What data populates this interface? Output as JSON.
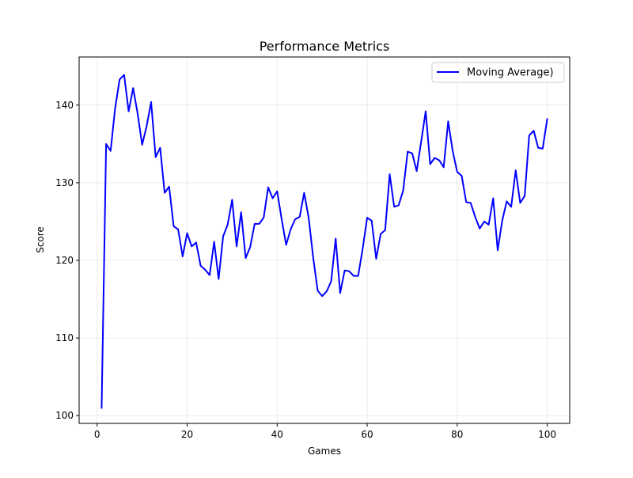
{
  "chart_data": {
    "type": "line",
    "title": "Performance Metrics",
    "xlabel": "Games",
    "ylabel": "Score",
    "xlim": [
      -4,
      105
    ],
    "ylim": [
      99.0,
      146.2
    ],
    "x_ticks": [
      0,
      20,
      40,
      60,
      80,
      100
    ],
    "y_ticks": [
      100,
      110,
      120,
      130,
      140
    ],
    "x_tick_labels": [
      "0",
      "20",
      "40",
      "60",
      "80",
      "100"
    ],
    "y_tick_labels": [
      "100",
      "110",
      "120",
      "130",
      "140"
    ],
    "grid": true,
    "legend_position": "top-right",
    "series": [
      {
        "name": "Moving Average)",
        "color": "#0000ff",
        "x": [
          1,
          2,
          3,
          4,
          5,
          6,
          7,
          8,
          9,
          10,
          11,
          12,
          13,
          14,
          15,
          16,
          17,
          18,
          19,
          20,
          21,
          22,
          23,
          24,
          25,
          26,
          27,
          28,
          29,
          30,
          31,
          32,
          33,
          34,
          35,
          36,
          37,
          38,
          39,
          40,
          41,
          42,
          43,
          44,
          45,
          46,
          47,
          48,
          49,
          50,
          51,
          52,
          53,
          54,
          55,
          56,
          57,
          58,
          59,
          60,
          61,
          62,
          63,
          64,
          65,
          66,
          67,
          68,
          69,
          70,
          71,
          72,
          73,
          74,
          75,
          76,
          77,
          78,
          79,
          80,
          81,
          82,
          83,
          84,
          85,
          86,
          87,
          88,
          89,
          90,
          91,
          92,
          93,
          94,
          95,
          96,
          97,
          98,
          99,
          100
        ],
        "values": [
          101.0,
          135.0,
          134.1,
          139.6,
          143.3,
          143.9,
          139.2,
          142.2,
          138.9,
          134.9,
          137.3,
          140.4,
          133.3,
          134.5,
          128.7,
          129.5,
          124.4,
          124.0,
          120.5,
          123.5,
          121.8,
          122.3,
          119.3,
          118.8,
          118.1,
          122.4,
          117.6,
          123.1,
          124.6,
          127.8,
          121.8,
          126.2,
          120.3,
          121.7,
          124.7,
          124.7,
          125.5,
          129.4,
          128.0,
          128.9,
          125.3,
          122.0,
          124.0,
          125.3,
          125.6,
          128.7,
          125.5,
          120.4,
          116.1,
          115.4,
          116.0,
          117.3,
          122.8,
          115.8,
          118.7,
          118.6,
          118.0,
          118.0,
          121.5,
          125.5,
          125.1,
          120.2,
          123.4,
          123.9,
          131.1,
          126.9,
          127.1,
          129.0,
          134.0,
          133.8,
          131.5,
          135.3,
          139.2,
          132.4,
          133.2,
          132.9,
          132.0,
          137.9,
          134.1,
          131.4,
          130.9,
          127.5,
          127.4,
          125.6,
          124.1,
          125.0,
          124.6,
          128.0,
          121.3,
          125.1,
          127.6,
          126.9,
          131.6,
          127.4,
          128.3,
          136.1,
          136.7,
          134.5,
          134.4,
          138.2
        ]
      }
    ]
  }
}
